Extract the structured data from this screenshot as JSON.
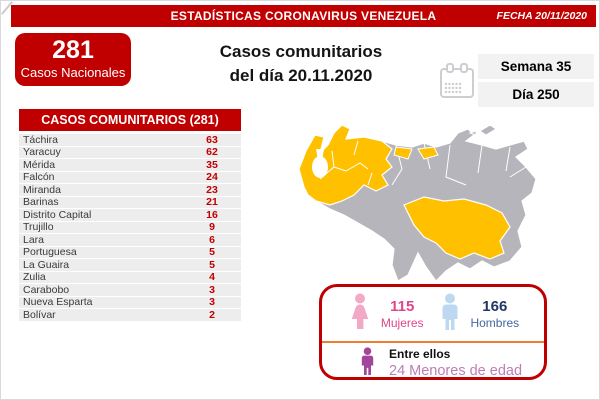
{
  "title_bar": {
    "title": "ESTADÍSTICAS CORONAVIRUS VENEZUELA",
    "date": "FECHA 20/11/2020"
  },
  "national_box": {
    "value": "281",
    "label": "Casos Nacionales"
  },
  "subtitle": {
    "line1": "Casos comunitarios",
    "line2": "del día 20.11.2020"
  },
  "period": {
    "week": "Semana 35",
    "day": "Día 250"
  },
  "cases_table": {
    "header": "CASOS COMUNITARIOS (281)",
    "rows": [
      {
        "state": "Táchira",
        "cases": "63"
      },
      {
        "state": "Yaracuy",
        "cases": "62"
      },
      {
        "state": "Mérida",
        "cases": "35"
      },
      {
        "state": "Falcón",
        "cases": "24"
      },
      {
        "state": "Miranda",
        "cases": "23"
      },
      {
        "state": "Barinas",
        "cases": "21"
      },
      {
        "state": "Distrito Capital",
        "cases": "16"
      },
      {
        "state": "Trujillo",
        "cases": "9"
      },
      {
        "state": "Lara",
        "cases": "6"
      },
      {
        "state": "Portuguesa",
        "cases": "5"
      },
      {
        "state": "La Guaira",
        "cases": "5"
      },
      {
        "state": "Zulia",
        "cases": "4"
      },
      {
        "state": "Carabobo",
        "cases": "3"
      },
      {
        "state": "Nueva Esparta",
        "cases": "3"
      },
      {
        "state": "Bolívar",
        "cases": "2"
      }
    ]
  },
  "demographics": {
    "women_value": "115",
    "women_label": "Mujeres",
    "men_value": "166",
    "men_label": "Hombres",
    "minors_title": "Entre ellos",
    "minors_value": "24 Menores de edad"
  },
  "colors": {
    "brand_red": "#C00000",
    "map_highlight_orange": "#FFC000",
    "map_base_gray": "#B5B5BB",
    "divider_orange": "#ED7D31",
    "women_pink": "#E0458C",
    "men_navy": "#1F3864",
    "men_blue": "#44689F",
    "minors_purple": "#BE7EB3",
    "row_gray": "#EDEDEE",
    "period_box_gray": "#F2F2F2"
  },
  "icons": {
    "calendar": "calendar-icon",
    "woman": "female-icon",
    "man": "male-icon",
    "child": "child-icon"
  },
  "chart_data": {
    "type": "table",
    "title": "CASOS COMUNITARIOS (281)",
    "categories": [
      "Táchira",
      "Yaracuy",
      "Mérida",
      "Falcón",
      "Miranda",
      "Barinas",
      "Distrito Capital",
      "Trujillo",
      "Lara",
      "Portuguesa",
      "La Guaira",
      "Zulia",
      "Carabobo",
      "Nueva Esparta",
      "Bolívar"
    ],
    "values": [
      63,
      62,
      35,
      24,
      23,
      21,
      16,
      9,
      6,
      5,
      5,
      4,
      3,
      3,
      2
    ],
    "annotations": {
      "total_national_cases": 281,
      "total_community_cases": 281,
      "women": 115,
      "men": 166,
      "minors": 24,
      "week": 35,
      "day": 250,
      "date": "20/11/2020"
    }
  }
}
